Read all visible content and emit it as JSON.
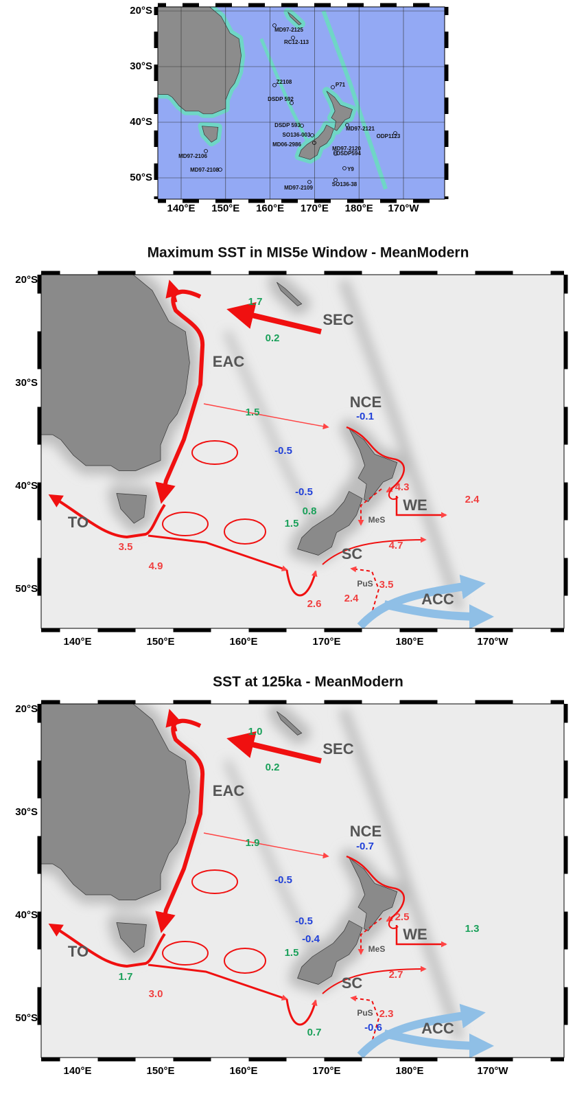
{
  "maps": [
    {
      "lat_labels": [
        "20°S",
        "30°S",
        "40°S",
        "50°S"
      ],
      "lon_labels": [
        "140°E",
        "150°E",
        "160°E",
        "170°E",
        "180°E",
        "170°W"
      ],
      "sites": [
        "MD97-2125",
        "RC12-113",
        "Z2108",
        "P71",
        "DSDP 592",
        "DSDP 593",
        "SO136-003",
        "MD06-2986",
        "MD97-2121",
        "ODP1123",
        "MD97-2120",
        "DSDP594",
        "MD97-2106",
        "MD97-2108",
        "Y9",
        "SO136-38",
        "MD97-2109"
      ]
    },
    {
      "title": "Maximum SST in MIS5e Window - MeanModern",
      "lat_labels": [
        "20°S",
        "30°S",
        "40°S",
        "50°S"
      ],
      "lon_labels": [
        "140°E",
        "150°E",
        "160°E",
        "170°E",
        "180°E",
        "170°W"
      ],
      "currents": [
        "SEC",
        "EAC",
        "NCE",
        "TO",
        "WE",
        "SC",
        "MeS",
        "PuS",
        "ACC"
      ],
      "values": [
        {
          "text": "1.7",
          "color": "#1aa05a"
        },
        {
          "text": "0.2",
          "color": "#1aa05a"
        },
        {
          "text": "1.5",
          "color": "#1aa05a"
        },
        {
          "text": "-0.5",
          "color": "#1f3fd8"
        },
        {
          "text": "-0.5",
          "color": "#1f3fd8"
        },
        {
          "text": "0.8",
          "color": "#1aa05a"
        },
        {
          "text": "1.5",
          "color": "#1aa05a"
        },
        {
          "text": "-0.1",
          "color": "#1f3fd8"
        },
        {
          "text": "4.3",
          "color": "#f04040"
        },
        {
          "text": "2.4",
          "color": "#f04040"
        },
        {
          "text": "4.7",
          "color": "#f04040"
        },
        {
          "text": "3.5",
          "color": "#f04040"
        },
        {
          "text": "2.4",
          "color": "#f04040"
        },
        {
          "text": "2.6",
          "color": "#f04040"
        },
        {
          "text": "3.5",
          "color": "#f04040"
        },
        {
          "text": "4.9",
          "color": "#f04040"
        }
      ]
    },
    {
      "title": "SST at 125ka - MeanModern",
      "lat_labels": [
        "20°S",
        "30°S",
        "40°S",
        "50°S"
      ],
      "lon_labels": [
        "140°E",
        "150°E",
        "160°E",
        "170°E",
        "180°E",
        "170°W"
      ],
      "currents": [
        "SEC",
        "EAC",
        "NCE",
        "TO",
        "WE",
        "SC",
        "MeS",
        "PuS",
        "ACC"
      ],
      "values": [
        {
          "text": "1.0",
          "color": "#1aa05a"
        },
        {
          "text": "0.2",
          "color": "#1aa05a"
        },
        {
          "text": "1.9",
          "color": "#1aa05a"
        },
        {
          "text": "-0.5",
          "color": "#1f3fd8"
        },
        {
          "text": "-0.5",
          "color": "#1f3fd8"
        },
        {
          "text": "-0.4",
          "color": "#1f3fd8"
        },
        {
          "text": "1.5",
          "color": "#1aa05a"
        },
        {
          "text": "-0.7",
          "color": "#1f3fd8"
        },
        {
          "text": "2.5",
          "color": "#f04040"
        },
        {
          "text": "1.3",
          "color": "#1aa05a"
        },
        {
          "text": "2.7",
          "color": "#f04040"
        },
        {
          "text": "2.3",
          "color": "#f04040"
        },
        {
          "text": "-0.6",
          "color": "#1f3fd8"
        },
        {
          "text": "0.7",
          "color": "#1aa05a"
        },
        {
          "text": "1.7",
          "color": "#1aa05a"
        },
        {
          "text": "3.0",
          "color": "#f04040"
        }
      ]
    }
  ]
}
